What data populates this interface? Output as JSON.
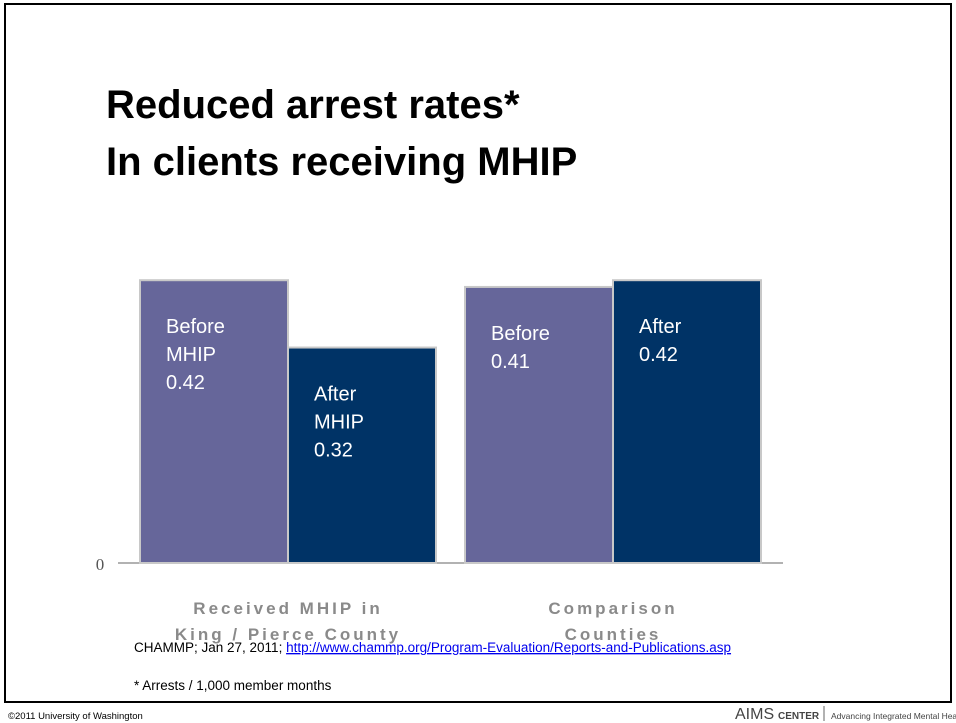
{
  "chart_data": {
    "type": "bar",
    "title_lines": [
      "Reduced arrest rates*",
      "In clients receiving MHIP"
    ],
    "categories": [
      [
        "Received MHIP in",
        "King / Pierce County"
      ],
      [
        "Comparison",
        "Counties"
      ]
    ],
    "series": [
      {
        "color": "#66669a",
        "values": [
          0.42,
          0.41
        ],
        "bar_labels": [
          [
            "Before",
            "MHIP"
          ],
          [
            "Before"
          ]
        ]
      },
      {
        "color": "#003366",
        "values": [
          0.32,
          0.42
        ],
        "bar_labels": [
          [
            "After",
            "MHIP"
          ],
          [
            "After"
          ]
        ]
      }
    ],
    "ylim": [
      0,
      0.45
    ],
    "yticks": [
      0
    ]
  },
  "source": {
    "text": "CHAMMP; Jan 27, 2011; ",
    "link": "http://www.chammp.org/Program-Evaluation/Reports-and-Publications.asp"
  },
  "footnote": "* Arrests / 1,000 member months",
  "copyright": "©2011 University of Washington",
  "logo": {
    "name": "AIMS",
    "word": "CENTER",
    "tagline": "Advancing Integrated Mental Health Solutions"
  }
}
